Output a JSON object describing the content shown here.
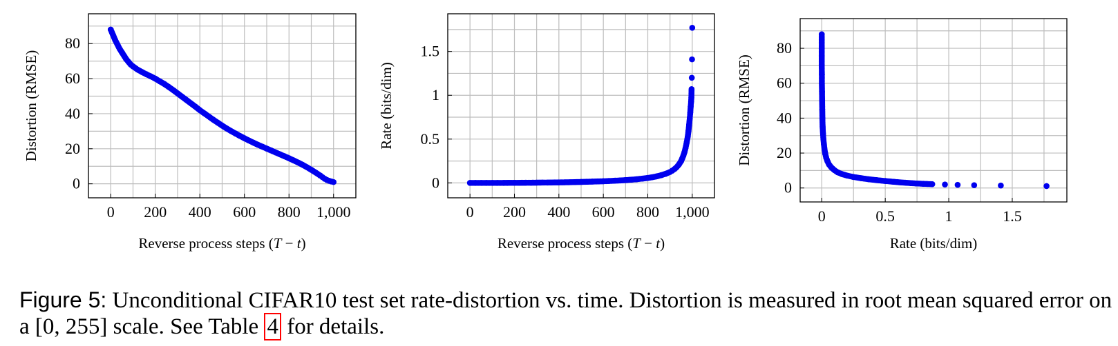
{
  "chart_data": [
    {
      "type": "scatter",
      "title": "",
      "xlabel": "Reverse process steps (T − t)",
      "ylabel": "Distortion (RMSE)",
      "xlim": [
        -100,
        1100
      ],
      "ylim": [
        -8,
        97
      ],
      "xticks": [
        0,
        200,
        400,
        600,
        800,
        1000
      ],
      "xtick_labels": [
        "0",
        "200",
        "400",
        "600",
        "800",
        "1,000"
      ],
      "yticks": [
        0,
        20,
        40,
        60,
        80
      ],
      "ytick_labels": [
        "0",
        "20",
        "40",
        "60",
        "80"
      ],
      "grid": true,
      "color": "#0000ee",
      "series": [
        {
          "name": "distortion-vs-steps",
          "x": [
            0,
            10,
            20,
            30,
            40,
            50,
            60,
            70,
            80,
            90,
            100,
            120,
            140,
            160,
            180,
            200,
            220,
            240,
            260,
            280,
            300,
            320,
            340,
            360,
            380,
            400,
            420,
            440,
            460,
            480,
            500,
            520,
            540,
            560,
            580,
            600,
            620,
            640,
            660,
            680,
            700,
            720,
            740,
            760,
            780,
            800,
            820,
            840,
            860,
            880,
            900,
            920,
            940,
            950,
            960,
            970,
            980,
            990,
            1000
          ],
          "y": [
            88,
            85,
            82,
            79.5,
            77,
            75,
            73,
            71,
            69.5,
            68,
            67,
            65.2,
            63.8,
            62.5,
            61.3,
            60,
            58.5,
            57,
            55.3,
            53.5,
            51.6,
            49.7,
            47.8,
            45.9,
            44,
            42,
            40.2,
            38.4,
            36.6,
            34.9,
            33.2,
            31.6,
            30.1,
            28.7,
            27.3,
            26,
            24.7,
            23.5,
            22.3,
            21.2,
            20.1,
            19,
            17.9,
            16.8,
            15.7,
            14.6,
            13.4,
            12.2,
            10.9,
            9.5,
            8,
            6.4,
            4.7,
            3.8,
            2.9,
            2.2,
            1.7,
            1.3,
            1
          ]
        }
      ]
    },
    {
      "type": "scatter",
      "title": "",
      "xlabel": "Reverse process steps (T − t)",
      "ylabel": "Rate (bits/dim)",
      "xlim": [
        -100,
        1100
      ],
      "ylim": [
        -0.17,
        1.93
      ],
      "xticks": [
        0,
        200,
        400,
        600,
        800,
        1000
      ],
      "xtick_labels": [
        "0",
        "200",
        "400",
        "600",
        "800",
        "1,000"
      ],
      "yticks": [
        0,
        0.5,
        1,
        1.5
      ],
      "ytick_labels": [
        "0",
        "0.5",
        "1",
        "1.5"
      ],
      "grid": true,
      "color": "#0000ee",
      "series": [
        {
          "name": "rate-vs-steps",
          "x": [
            0,
            25,
            50,
            75,
            100,
            125,
            150,
            175,
            200,
            225,
            250,
            275,
            300,
            325,
            350,
            375,
            400,
            425,
            450,
            475,
            500,
            525,
            550,
            575,
            600,
            625,
            650,
            675,
            700,
            725,
            750,
            775,
            800,
            820,
            840,
            860,
            880,
            900,
            910,
            920,
            930,
            940,
            950,
            955,
            960,
            965,
            970,
            975,
            980,
            983,
            986,
            989,
            991,
            993,
            995,
            996,
            997,
            998,
            999,
            1000
          ],
          "y": [
            0,
            0,
            0,
            0,
            0,
            0,
            0,
            0.001,
            0.001,
            0.001,
            0.002,
            0.002,
            0.003,
            0.004,
            0.004,
            0.005,
            0.006,
            0.007,
            0.008,
            0.01,
            0.011,
            0.013,
            0.015,
            0.017,
            0.019,
            0.022,
            0.025,
            0.028,
            0.032,
            0.037,
            0.042,
            0.049,
            0.057,
            0.065,
            0.075,
            0.088,
            0.104,
            0.125,
            0.14,
            0.158,
            0.18,
            0.21,
            0.25,
            0.28,
            0.31,
            0.35,
            0.4,
            0.46,
            0.53,
            0.59,
            0.66,
            0.74,
            0.8,
            0.87,
            0.93,
            0.97,
            1.07,
            1.2,
            1.41,
            1.77
          ]
        }
      ]
    },
    {
      "type": "scatter",
      "title": "",
      "xlabel": "Rate (bits/dim)",
      "ylabel": "Distortion (RMSE)",
      "xlim": [
        -0.17,
        1.93
      ],
      "ylim": [
        -8,
        97
      ],
      "xticks": [
        0,
        0.5,
        1,
        1.5
      ],
      "xtick_labels": [
        "0",
        "0.5",
        "1",
        "1.5"
      ],
      "yticks": [
        0,
        20,
        40,
        60,
        80
      ],
      "ytick_labels": [
        "0",
        "20",
        "40",
        "60",
        "80"
      ],
      "grid": true,
      "color": "#0000ee",
      "series": [
        {
          "name": "distortion-vs-rate",
          "x": [
            0,
            0,
            0,
            0,
            0,
            0.001,
            0.001,
            0.002,
            0.003,
            0.004,
            0.005,
            0.007,
            0.01,
            0.013,
            0.017,
            0.022,
            0.028,
            0.035,
            0.045,
            0.057,
            0.075,
            0.1,
            0.125,
            0.158,
            0.2,
            0.25,
            0.31,
            0.37,
            0.43,
            0.5,
            0.56,
            0.62,
            0.66,
            0.7,
            0.74,
            0.8,
            0.87,
            0.97,
            1.07,
            1.2,
            1.41,
            1.77
          ],
          "y": [
            88,
            85,
            80,
            75,
            70,
            65,
            60,
            55,
            50,
            45,
            40,
            35,
            31,
            28,
            25,
            22,
            19.5,
            17.3,
            15.3,
            13.5,
            11.8,
            10.2,
            9,
            8,
            7.1,
            6.3,
            5.6,
            5,
            4.5,
            4,
            3.6,
            3.2,
            3,
            2.8,
            2.6,
            2.4,
            2.2,
            2,
            1.8,
            1.6,
            1.4,
            1.1
          ]
        }
      ]
    }
  ],
  "caption": {
    "label": "Figure 5:",
    "text_before_ref": " Unconditional CIFAR10 test set rate-distortion vs. time. Distortion is measured in root mean squared error on a [0, 255] scale. See Table ",
    "ref": "4",
    "text_after_ref": " for details."
  }
}
